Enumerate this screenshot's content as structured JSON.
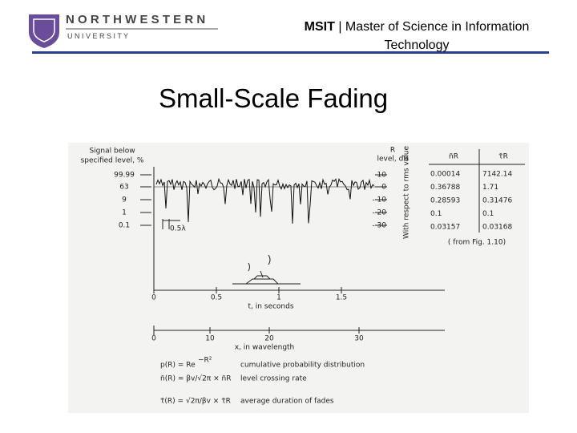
{
  "header": {
    "logo_top": "N O R T H W E S T E R N",
    "logo_bottom": "U N I V E R S I T Y",
    "title_bold": "MSIT",
    "separator": "|",
    "title_rest": "Master of Science in Information Technology"
  },
  "slide_title": "Small-Scale Fading",
  "figure": {
    "left_label": [
      "Signal below",
      "specified level, %"
    ],
    "left_levels": [
      "99.99",
      "63",
      "9",
      "1",
      "0.1"
    ],
    "right_label": [
      "R",
      "level, dB"
    ],
    "right_levels": [
      "10",
      "0",
      "- 10",
      "- 20",
      "- 30"
    ],
    "rotated_label": "With respect to rms value",
    "table_header": [
      "n̄R",
      "τ̄R"
    ],
    "table_rows": [
      [
        "0.00014",
        "7142.14"
      ],
      [
        "0.36788",
        "1.71"
      ],
      [
        "0.28593",
        "0.31476"
      ],
      [
        "0.1",
        "0.1"
      ],
      [
        "0.03157",
        "0.03168"
      ]
    ],
    "source": "( from Fig. 1.10)",
    "scale_mark": "0.5λ",
    "time_ticks": [
      "0",
      "0.5",
      "1",
      "1.5"
    ],
    "time_label": "t, in seconds",
    "distance_ticks": [
      "0",
      "10",
      "20",
      "30"
    ],
    "distance_label": "x, in wavelength",
    "formulas": [
      {
        "lhs": "p(R) = Re",
        "sup": "−R²",
        "desc": "cumulative probability distribution"
      },
      {
        "lhs": "n̄(R) = βv/√2π  ×  n̄R",
        "desc": "level crossing rate"
      },
      {
        "lhs": "τ̄(R) = √2π/βv  ×  τ̄R",
        "desc": "average duration of fades"
      }
    ]
  }
}
